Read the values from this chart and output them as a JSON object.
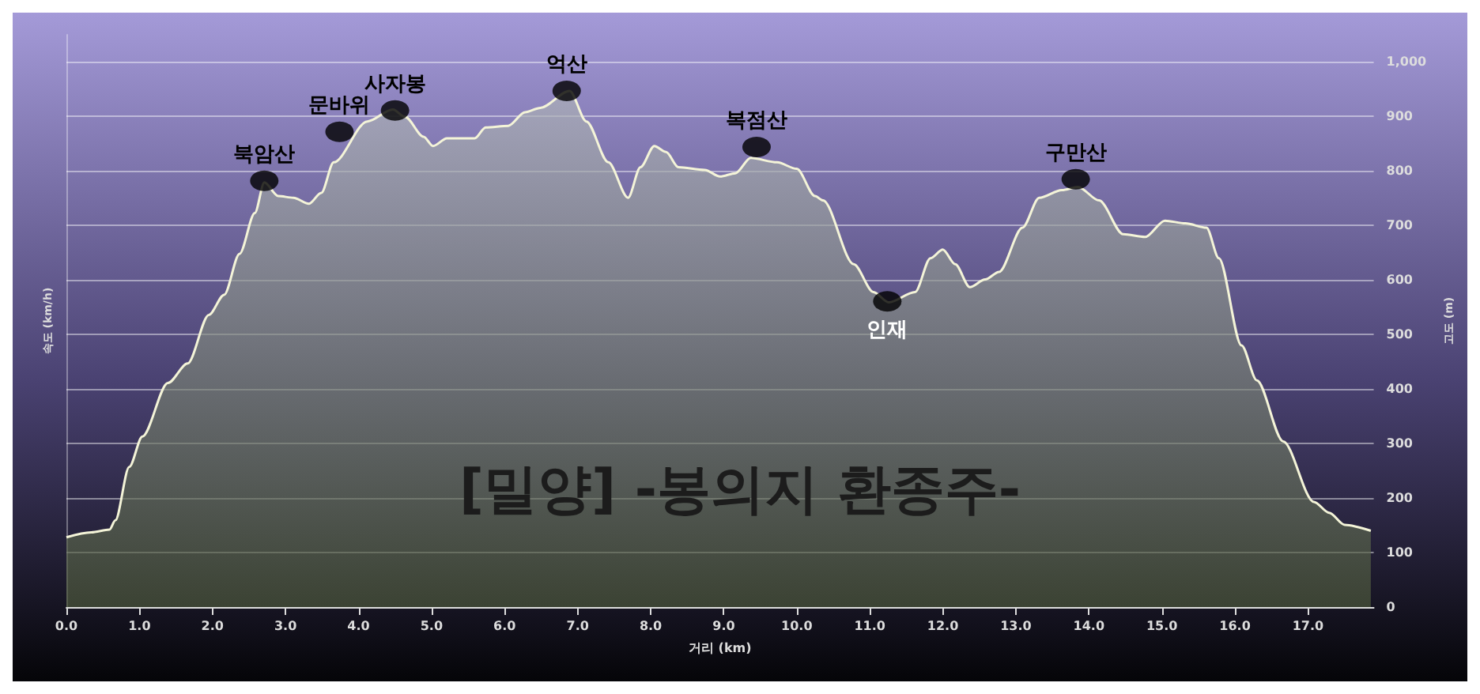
{
  "chart_data": {
    "type": "area",
    "title": "[밀양] -봉의지 환종주-",
    "xlabel": "거리 (km)",
    "ylabel": "고도 (m)",
    "y2label": "속도 (km/h)",
    "x": [
      0,
      0.34,
      0.59,
      0.67,
      0.86,
      1.04,
      1.39,
      1.66,
      1.95,
      2.16,
      2.37,
      2.58,
      2.71,
      2.9,
      3.11,
      3.32,
      3.49,
      3.66,
      4.12,
      4.47,
      4.64,
      4.89,
      5.02,
      5.21,
      5.59,
      5.74,
      6.05,
      6.28,
      6.49,
      6.89,
      7.12,
      7.42,
      7.69,
      7.86,
      8.05,
      8.21,
      8.38,
      8.74,
      8.95,
      9.16,
      9.37,
      9.73,
      10.0,
      10.25,
      10.36,
      10.78,
      11.05,
      11.26,
      11.62,
      11.83,
      12.0,
      12.17,
      12.37,
      12.58,
      12.77,
      13.09,
      13.32,
      13.63,
      13.85,
      14.14,
      14.47,
      14.77,
      15.04,
      15.32,
      15.61,
      15.78,
      16.09,
      16.3,
      16.66,
      17.08,
      17.29,
      17.5,
      17.86
    ],
    "series": [
      {
        "color": "#f4f4d8",
        "values": [
          128,
          137,
          142,
          159,
          257,
          313,
          411,
          447,
          536,
          573,
          648,
          723,
          779,
          754,
          751,
          740,
          760,
          816,
          891,
          913,
          899,
          863,
          846,
          860,
          860,
          880,
          883,
          908,
          916,
          947,
          891,
          816,
          751,
          807,
          846,
          835,
          807,
          802,
          790,
          796,
          824,
          816,
          804,
          754,
          746,
          629,
          578,
          559,
          578,
          640,
          656,
          629,
          587,
          601,
          615,
          696,
          751,
          765,
          771,
          746,
          684,
          679,
          709,
          704,
          696,
          640,
          480,
          416,
          304,
          193,
          173,
          151,
          140
        ]
      },
      {
        "type": "scatter",
        "color": "#000000",
        "marker": "circle",
        "x": [
          2.71,
          3.74,
          4.5,
          6.85,
          9.45,
          11.24,
          13.82
        ],
        "values": [
          782,
          872,
          911,
          947,
          844,
          561,
          785
        ]
      }
    ],
    "xlim": [
      0,
      17.9
    ],
    "xticks": [
      {
        "value": 0,
        "label": "0.0"
      },
      {
        "value": 1,
        "label": "1.0"
      },
      {
        "value": 2,
        "label": "2.0"
      },
      {
        "value": 3,
        "label": "3.0"
      },
      {
        "value": 4,
        "label": "4.0"
      },
      {
        "value": 5,
        "label": "5.0"
      },
      {
        "value": 6,
        "label": "6.0"
      },
      {
        "value": 7,
        "label": "7.0"
      },
      {
        "value": 8,
        "label": "8.0"
      },
      {
        "value": 9,
        "label": "9.0"
      },
      {
        "value": 10,
        "label": "10.0"
      },
      {
        "value": 11,
        "label": "11.0"
      },
      {
        "value": 12,
        "label": "12.0"
      },
      {
        "value": 13,
        "label": "13.0"
      },
      {
        "value": 14,
        "label": "14.0"
      },
      {
        "value": 15,
        "label": "15.0"
      },
      {
        "value": 16,
        "label": "16.0"
      },
      {
        "value": 17,
        "label": "17.0"
      }
    ],
    "ylim": [
      0,
      1050
    ],
    "yticks": [
      0,
      100,
      200,
      300,
      400,
      500,
      600,
      700,
      800,
      900,
      {
        "value": 1000,
        "label": "1,000"
      }
    ],
    "grid": "y",
    "marker": "none",
    "annotations": [
      {
        "text": "북암산",
        "x": 2.71,
        "y": 782
      },
      {
        "text": "문바위",
        "x": 3.74,
        "y": 872
      },
      {
        "text": "사자봉",
        "x": 4.5,
        "y": 911
      },
      {
        "text": "억산",
        "x": 6.85,
        "y": 947
      },
      {
        "text": "복점산",
        "x": 9.45,
        "y": 844
      },
      {
        "text": "인재",
        "x": 11.24,
        "y": 561
      },
      {
        "text": "구만산",
        "x": 13.82,
        "y": 785
      }
    ]
  }
}
